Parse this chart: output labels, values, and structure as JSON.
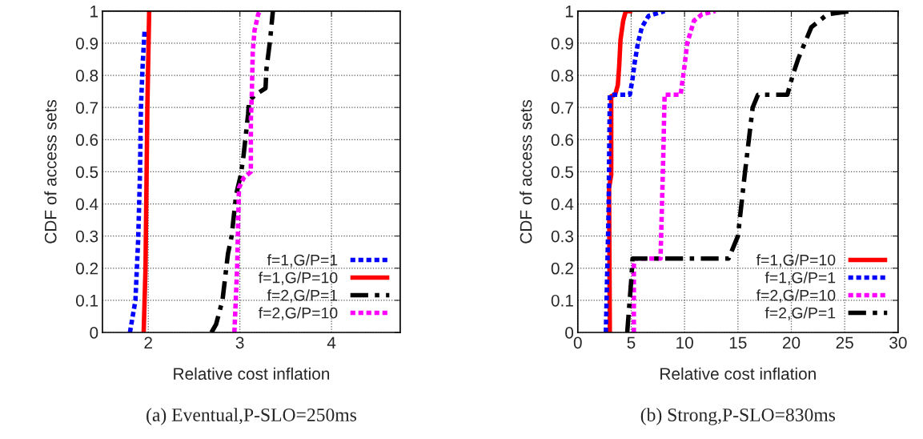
{
  "chart_data": [
    {
      "type": "line",
      "title": "(a) Eventual,P-SLO=250ms",
      "xlabel": "Relative cost inflation",
      "ylabel": "CDF of access sets",
      "xlim": [
        1.5,
        4.75
      ],
      "xticks": [
        2,
        3,
        4
      ],
      "ylim": [
        0,
        1
      ],
      "yticks": [
        0,
        0.1,
        0.2,
        0.3,
        0.4,
        0.5,
        0.6,
        0.7,
        0.8,
        0.9,
        1
      ],
      "grid": true,
      "legend": "bottom right",
      "series": [
        {
          "name": "f=1,G/P=1",
          "color": "#0000ff",
          "line_style": "dotted",
          "x": [
            1.8,
            1.86,
            1.89,
            1.91,
            1.92,
            1.94,
            1.96
          ],
          "values": [
            0,
            0.1,
            0.29,
            0.5,
            0.7,
            0.84,
            0.94
          ]
        },
        {
          "name": "f=1,G/P=10",
          "color": "#ff0000",
          "line_style": "solid",
          "x": [
            1.95,
            1.97,
            1.99,
            2.01
          ],
          "values": [
            0,
            0.2,
            0.7,
            1.0
          ]
        },
        {
          "name": "f=2,G/P=1",
          "color": "#000000",
          "line_style": "dashdot",
          "x": [
            2.69,
            2.74,
            2.81,
            2.87,
            2.91,
            2.96,
            3.01,
            3.04,
            3.09,
            3.1,
            3.17,
            3.28,
            3.29,
            3.33,
            3.36
          ],
          "values": [
            0,
            0.025,
            0.1,
            0.245,
            0.3,
            0.43,
            0.49,
            0.55,
            0.68,
            0.72,
            0.74,
            0.76,
            0.82,
            0.91,
            1.0
          ]
        },
        {
          "name": "f=2,G/P=10",
          "color": "#ff00ff",
          "line_style": "dotted",
          "x": [
            2.94,
            2.97,
            2.99,
            3.04,
            3.12,
            3.12,
            3.13,
            3.14,
            3.16,
            3.2,
            3.22
          ],
          "values": [
            0,
            0.2,
            0.45,
            0.48,
            0.5,
            0.66,
            0.74,
            0.87,
            0.94,
            0.99,
            1.0
          ]
        }
      ]
    },
    {
      "type": "line",
      "title": "(b) Strong,P-SLO=830ms",
      "xlabel": "Relative cost inflation",
      "ylabel": "CDF of access sets",
      "xlim": [
        0,
        30
      ],
      "xticks": [
        0,
        5,
        10,
        15,
        20,
        25,
        30
      ],
      "ylim": [
        0,
        1
      ],
      "yticks": [
        0,
        0.1,
        0.2,
        0.3,
        0.4,
        0.5,
        0.6,
        0.7,
        0.8,
        0.9,
        1
      ],
      "grid": true,
      "legend": "bottom right",
      "series": [
        {
          "name": "f=1,G/P=10",
          "color": "#ff0000",
          "line_style": "solid",
          "x": [
            3.0,
            2.93,
            3.13,
            3.13,
            3.5,
            3.75,
            3.88,
            4.0,
            4.25,
            4.5,
            5.1
          ],
          "values": [
            0,
            0.45,
            0.49,
            0.735,
            0.74,
            0.77,
            0.83,
            0.91,
            0.97,
            1.0,
            1.0
          ]
        },
        {
          "name": "f=1,G/P=1",
          "color": "#0000ff",
          "line_style": "dotted",
          "x": [
            2.63,
            2.88,
            3.0,
            4.13,
            4.88,
            5.13,
            5.33,
            5.63,
            6.0,
            6.63,
            8.13
          ],
          "values": [
            0,
            0.37,
            0.74,
            0.74,
            0.74,
            0.79,
            0.84,
            0.9,
            0.95,
            0.985,
            1.0
          ]
        },
        {
          "name": "f=2,G/P=10",
          "color": "#ff00ff",
          "line_style": "dotted",
          "x": [
            5.25,
            5.25,
            5.38,
            7.75,
            8.0,
            8.13,
            9.63,
            10.0,
            10.25,
            10.88,
            11.63,
            12.88
          ],
          "values": [
            0,
            0.21,
            0.23,
            0.23,
            0.54,
            0.74,
            0.74,
            0.83,
            0.9,
            0.97,
            0.99,
            1.0
          ]
        },
        {
          "name": "f=2,G/P=1",
          "color": "#000000",
          "line_style": "dashdot",
          "x": [
            4.63,
            5.0,
            5.13,
            14.13,
            15.0,
            15.63,
            16.38,
            16.88,
            19.63,
            20.13,
            20.63,
            21.25,
            21.88,
            23.38,
            25.6
          ],
          "values": [
            0,
            0.16,
            0.23,
            0.23,
            0.3,
            0.49,
            0.7,
            0.74,
            0.74,
            0.8,
            0.85,
            0.9,
            0.95,
            0.99,
            1.0
          ]
        }
      ]
    }
  ]
}
